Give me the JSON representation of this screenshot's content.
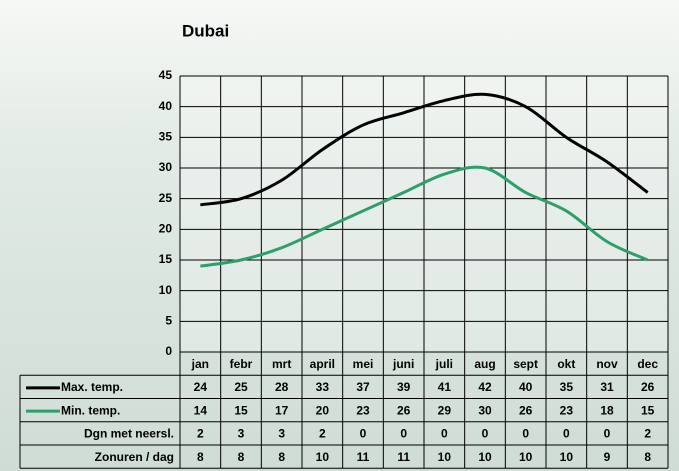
{
  "chart_data": {
    "type": "line",
    "title": "Dubai",
    "categories": [
      "jan",
      "febr",
      "mrt",
      "april",
      "mei",
      "juni",
      "juli",
      "aug",
      "sept",
      "okt",
      "nov",
      "dec"
    ],
    "series": [
      {
        "name": "Max. temp.",
        "color": "#000000",
        "values": [
          24,
          25,
          28,
          33,
          37,
          39,
          41,
          42,
          40,
          35,
          31,
          26
        ]
      },
      {
        "name": "Min. temp.",
        "color": "#2e9e6b",
        "values": [
          14,
          15,
          17,
          20,
          23,
          26,
          29,
          30,
          26,
          23,
          18,
          15
        ]
      }
    ],
    "table_rows": [
      {
        "label": "Dgn met neersl.",
        "values": [
          2,
          3,
          3,
          2,
          0,
          0,
          0,
          0,
          0,
          0,
          0,
          2
        ]
      },
      {
        "label": "Zonuren / dag",
        "values": [
          8,
          8,
          8,
          10,
          11,
          11,
          10,
          10,
          10,
          10,
          9,
          8
        ]
      }
    ],
    "ylim": [
      0,
      45
    ],
    "yticks": [
      0,
      5,
      10,
      15,
      20,
      25,
      30,
      35,
      40,
      45
    ],
    "grid": true
  }
}
